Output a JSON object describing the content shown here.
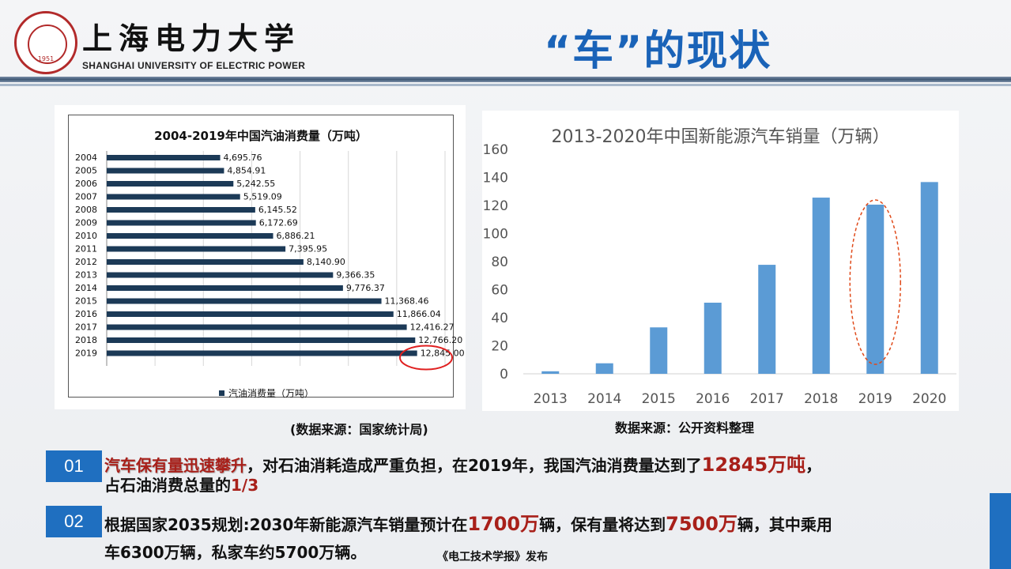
{
  "header": {
    "university_cn": "上海电力大学",
    "university_en": "SHANGHAI UNIVERSITY OF ELECTRIC POWER",
    "seal_year": "1951",
    "page_title": "“车”的现状"
  },
  "colors": {
    "accent": "#1a63b8",
    "badge": "#1f6fc0",
    "highlight_red": "#a8201a",
    "left_bar": "#1c3a57",
    "right_bar": "#5b9bd5"
  },
  "chart_data": [
    {
      "type": "bar",
      "orientation": "horizontal",
      "title": "2004-2019年中国汽油消费量（万吨）",
      "categories": [
        "2004",
        "2005",
        "2006",
        "2007",
        "2008",
        "2009",
        "2010",
        "2011",
        "2012",
        "2013",
        "2014",
        "2015",
        "2016",
        "2017",
        "2018",
        "2019"
      ],
      "values": [
        4695.76,
        4854.91,
        5242.55,
        5519.09,
        6145.52,
        6172.69,
        6886.21,
        7395.95,
        8140.9,
        9366.35,
        9776.37,
        11368.46,
        11866.04,
        12416.27,
        12766.2,
        12845.0
      ],
      "value_labels": [
        "4,695.76",
        "4,854.91",
        "5,242.55",
        "5,519.09",
        "6,145.52",
        "6,172.69",
        "6,886.21",
        "7,395.95",
        "8,140.90",
        "9,366.35",
        "9,776.37",
        "11,368.46",
        "11,866.04",
        "12,416.27",
        "12,766.20",
        "12,845.00"
      ],
      "xlim": [
        0,
        14000
      ],
      "grid": true,
      "legend": [
        "汽油消费量（万吨）"
      ],
      "legend_position": "bottom",
      "highlight_category": "2019"
    },
    {
      "type": "bar",
      "title": "2013-2020年中国新能源汽车销量（万辆）",
      "categories": [
        "2013",
        "2014",
        "2015",
        "2016",
        "2017",
        "2018",
        "2019",
        "2020"
      ],
      "values": [
        1.8,
        7.5,
        33.1,
        50.7,
        77.7,
        125.6,
        120.6,
        136.7
      ],
      "ylim": [
        0,
        160
      ],
      "yticks": [
        0,
        20,
        40,
        60,
        80,
        100,
        120,
        140,
        160
      ],
      "grid": false,
      "highlight_category": "2019"
    }
  ],
  "sources": {
    "left": "(数据来源：国家统计局)",
    "right": "数据来源：公开资料整理"
  },
  "bullets": [
    {
      "badge": "01",
      "line1_highlight": "汽车保有量迅速攀升",
      "line1_text": "，对石油消耗造成严重负担，在2019年，我国汽油消费量达到了",
      "line1_value": "12845万吨",
      "line1_end": "，",
      "line2_text": "占石油消费总量的",
      "line2_value": "1/3"
    },
    {
      "badge": "02",
      "line1_a": "根据国家2035规划:2030年新能源汽车销量预计在",
      "line1_v1": "1700万",
      "line1_b": "辆，保有量将达到",
      "line1_v2": "7500万",
      "line1_c": "辆，其中乘用",
      "line2_text": "车6300万辆，私家车约5700万辆。"
    }
  ],
  "publisher": "《电工技术学报》发布"
}
